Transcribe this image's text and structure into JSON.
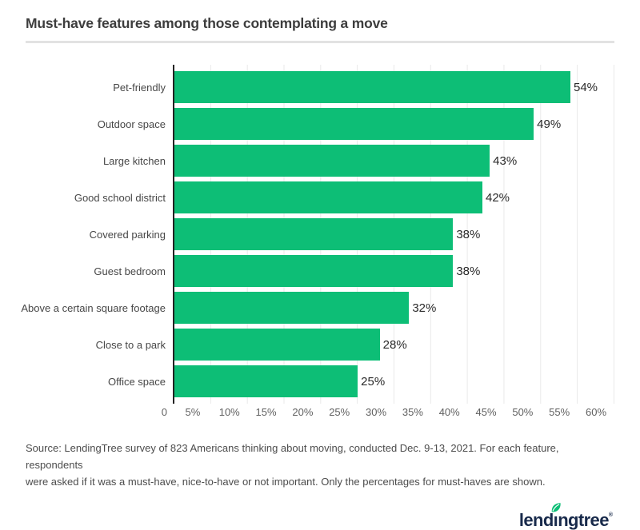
{
  "header": {
    "title": "Must-have features among those contemplating a move"
  },
  "chart_data": {
    "type": "bar",
    "orientation": "horizontal",
    "title": "Must-have features among those contemplating a move",
    "categories": [
      "Pet-friendly",
      "Outdoor space",
      "Large kitchen",
      "Good school district",
      "Covered parking",
      "Guest bedroom",
      "Above a certain square footage",
      "Close to a park",
      "Office space"
    ],
    "values": [
      54,
      49,
      43,
      42,
      38,
      38,
      32,
      28,
      25
    ],
    "value_labels": [
      "54%",
      "49%",
      "43%",
      "42%",
      "38%",
      "38%",
      "32%",
      "28%",
      "25%"
    ],
    "xlabel": "",
    "ylabel": "",
    "xlim": [
      0,
      60
    ],
    "x_tick_zero": "0",
    "x_ticks": [
      "5%",
      "10%",
      "15%",
      "20%",
      "25%",
      "30%",
      "35%",
      "40%",
      "45%",
      "50%",
      "55%",
      "60%"
    ],
    "grid": true,
    "legend": false,
    "bar_color": "#0dbe76",
    "axis_color": "#232323",
    "gridline_color": "#e9e9e9"
  },
  "source": {
    "lines": [
      "Source: LendingTree survey of 823 Americans thinking about moving, conducted Dec. 9-13, 2021. For each feature, respondents",
      "were asked if it was a must-have, nice-to-have or not important. Only the percentages for must-haves are shown."
    ]
  },
  "logo": {
    "brand": "lendingtree",
    "part1": "lend",
    "part2": "ı",
    "part3": "ngtree",
    "reg": "®",
    "navy": "#182a4b",
    "leaf_green": "#0dbe76"
  }
}
